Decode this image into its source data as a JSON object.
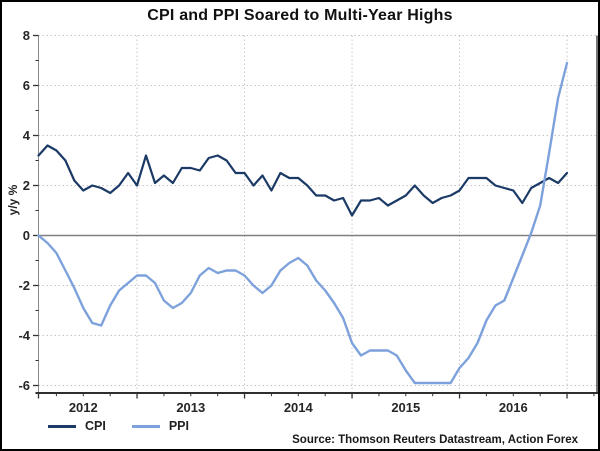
{
  "title": "CPI and PPI Soared to Multi-Year Highs",
  "y_axis_label": "y/y %",
  "source": "Source: Thomson Reuters Datastream, Action Forex",
  "legend": [
    {
      "label": "CPI"
    },
    {
      "label": "PPI"
    }
  ],
  "colors": {
    "cpi": "#1B3A66",
    "ppi": "#7DA1DB",
    "zero_line": "#808080",
    "gridline": "#c6c6c6",
    "axis": "#333333",
    "side_border": "#8c8c8c",
    "tick_text": "#262626",
    "outer_border": "#000000"
  },
  "chart_data": {
    "type": "line",
    "title": "CPI and PPI Soared to Multi-Year Highs",
    "xlabel": "",
    "ylabel": "y/y %",
    "x_unit": "month",
    "grid": true,
    "legend_position": "bottom-left",
    "ylim": [
      -6.3,
      8
    ],
    "y_ticks": [
      8,
      6,
      4,
      2,
      0,
      -2,
      -4,
      -6
    ],
    "y_minor_ticks": [
      7,
      5,
      3,
      1,
      -1,
      -3,
      -5
    ],
    "x_tick_labels": [
      "2012",
      "2013",
      "2014",
      "2015",
      "2016"
    ],
    "months": [
      "2012-02",
      "2012-03",
      "2012-04",
      "2012-05",
      "2012-06",
      "2012-07",
      "2012-08",
      "2012-09",
      "2012-10",
      "2012-11",
      "2012-12",
      "2013-01",
      "2013-02",
      "2013-03",
      "2013-04",
      "2013-05",
      "2013-06",
      "2013-07",
      "2013-08",
      "2013-09",
      "2013-10",
      "2013-11",
      "2013-12",
      "2014-01",
      "2014-02",
      "2014-03",
      "2014-04",
      "2014-05",
      "2014-06",
      "2014-07",
      "2014-08",
      "2014-09",
      "2014-10",
      "2014-11",
      "2014-12",
      "2015-01",
      "2015-02",
      "2015-03",
      "2015-04",
      "2015-05",
      "2015-06",
      "2015-07",
      "2015-08",
      "2015-09",
      "2015-10",
      "2015-11",
      "2015-12",
      "2016-01",
      "2016-02",
      "2016-03",
      "2016-04",
      "2016-05",
      "2016-06",
      "2016-07",
      "2016-08",
      "2016-09",
      "2016-10",
      "2016-11",
      "2016-12",
      "2017-01"
    ],
    "series": [
      {
        "name": "CPI",
        "values": [
          3.2,
          3.6,
          3.4,
          3.0,
          2.2,
          1.8,
          2.0,
          1.9,
          1.7,
          2.0,
          2.5,
          2.0,
          3.2,
          2.1,
          2.4,
          2.1,
          2.7,
          2.7,
          2.6,
          3.1,
          3.2,
          3.0,
          2.5,
          2.5,
          2.0,
          2.4,
          1.8,
          2.5,
          2.3,
          2.3,
          2.0,
          1.6,
          1.6,
          1.4,
          1.5,
          0.8,
          1.4,
          1.4,
          1.5,
          1.2,
          1.4,
          1.6,
          2.0,
          1.6,
          1.3,
          1.5,
          1.6,
          1.8,
          2.3,
          2.3,
          2.3,
          2.0,
          1.9,
          1.8,
          1.3,
          1.9,
          2.1,
          2.3,
          2.1,
          2.5
        ]
      },
      {
        "name": "PPI",
        "values": [
          0.0,
          -0.3,
          -0.7,
          -1.4,
          -2.1,
          -2.9,
          -3.5,
          -3.6,
          -2.8,
          -2.2,
          -1.9,
          -1.6,
          -1.6,
          -1.9,
          -2.6,
          -2.9,
          -2.7,
          -2.3,
          -1.6,
          -1.3,
          -1.5,
          -1.4,
          -1.4,
          -1.6,
          -2.0,
          -2.3,
          -2.0,
          -1.4,
          -1.1,
          -0.9,
          -1.2,
          -1.8,
          -2.2,
          -2.7,
          -3.3,
          -4.3,
          -4.8,
          -4.6,
          -4.6,
          -4.6,
          -4.8,
          -5.4,
          -5.9,
          -5.9,
          -5.9,
          -5.9,
          -5.9,
          -5.3,
          -4.9,
          -4.3,
          -3.4,
          -2.8,
          -2.6,
          -1.7,
          -0.8,
          0.1,
          1.2,
          3.3,
          5.5,
          6.9
        ]
      }
    ]
  }
}
